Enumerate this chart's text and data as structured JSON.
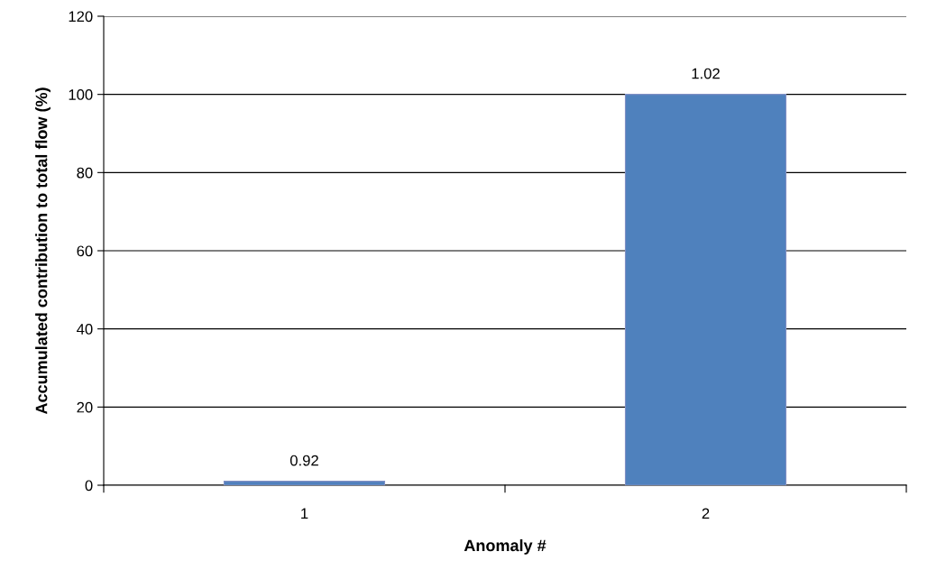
{
  "chart_data": {
    "type": "bar",
    "xlabel": "Anomaly #",
    "ylabel": "Accumulated contribution to total flow (%)",
    "categories": [
      "1",
      "2"
    ],
    "values": [
      1,
      100
    ],
    "annotations": [
      {
        "text": "0.92",
        "x": "1",
        "y": 1
      },
      {
        "text": "1.02",
        "x": "2",
        "y": 100
      }
    ],
    "color": "#4f81bd",
    "ylim": [
      0,
      120
    ],
    "yticks": [
      0,
      20,
      40,
      60,
      80,
      100,
      120
    ],
    "grid": "y",
    "legend": false
  }
}
